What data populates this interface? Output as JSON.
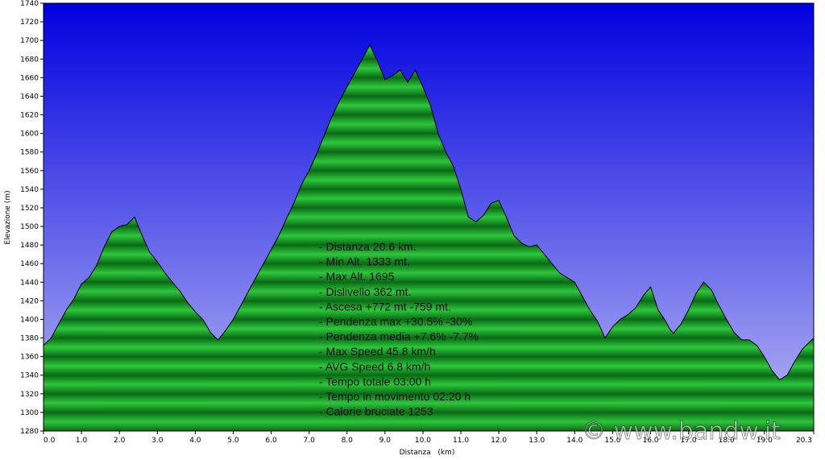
{
  "chart_data": {
    "type": "area",
    "title": "",
    "xlabel": "Distanza   (km)",
    "ylabel": "Elevazione (m)",
    "xlim": [
      0,
      20.3
    ],
    "ylim": [
      1280,
      1740
    ],
    "x_ticks": [
      "0.0",
      "1.0",
      "2.0",
      "3.0",
      "4.0",
      "5.0",
      "6.0",
      "7.0",
      "8.0",
      "9.0",
      "10.0",
      "11.0",
      "12.0",
      "13.0",
      "14.0",
      "15.0",
      "16.0",
      "17.0",
      "18.0",
      "19.0",
      "20.3"
    ],
    "y_ticks": [
      "1280",
      "1300",
      "1320",
      "1340",
      "1360",
      "1380",
      "1400",
      "1420",
      "1440",
      "1460",
      "1480",
      "1500",
      "1520",
      "1540",
      "1560",
      "1580",
      "1600",
      "1620",
      "1640",
      "1660",
      "1680",
      "1700",
      "1720",
      "1740"
    ],
    "grid": false,
    "colors": {
      "sky_top": "#0000e0",
      "sky_bottom": "#b8b8f4",
      "fill_light": "#2ec63c",
      "fill_dark": "#0a6a16",
      "outline": "#000000"
    },
    "series": [
      {
        "x": [
          0.0,
          0.2,
          0.4,
          0.6,
          0.8,
          1.0,
          1.2,
          1.4,
          1.6,
          1.8,
          2.0,
          2.2,
          2.4,
          2.6,
          2.8,
          3.0,
          3.2,
          3.4,
          3.6,
          3.8,
          4.0,
          4.2,
          4.4,
          4.6,
          4.8,
          5.0,
          5.2,
          5.4,
          5.6,
          5.8,
          6.0,
          6.2,
          6.4,
          6.6,
          6.8,
          7.0,
          7.2,
          7.4,
          7.6,
          7.8,
          8.0,
          8.2,
          8.4,
          8.6,
          8.8,
          9.0,
          9.2,
          9.4,
          9.6,
          9.8,
          10.0,
          10.2,
          10.4,
          10.6,
          10.8,
          11.0,
          11.2,
          11.4,
          11.6,
          11.8,
          12.0,
          12.2,
          12.4,
          12.6,
          12.8,
          13.0,
          13.2,
          13.4,
          13.6,
          13.8,
          14.0,
          14.2,
          14.4,
          14.6,
          14.8,
          15.0,
          15.2,
          15.4,
          15.6,
          15.8,
          16.0,
          16.2,
          16.4,
          16.5,
          16.6,
          16.8,
          17.0,
          17.2,
          17.4,
          17.6,
          17.8,
          18.0,
          18.2,
          18.4,
          18.6,
          18.8,
          19.0,
          19.2,
          19.4,
          19.6,
          19.8,
          20.0,
          20.3
        ],
        "y": [
          1372,
          1380,
          1395,
          1410,
          1422,
          1438,
          1445,
          1458,
          1478,
          1494,
          1500,
          1502,
          1510,
          1490,
          1472,
          1462,
          1450,
          1440,
          1430,
          1418,
          1408,
          1400,
          1386,
          1378,
          1388,
          1400,
          1415,
          1430,
          1445,
          1460,
          1475,
          1490,
          1508,
          1525,
          1545,
          1560,
          1578,
          1598,
          1618,
          1635,
          1650,
          1665,
          1680,
          1695,
          1678,
          1658,
          1662,
          1668,
          1655,
          1668,
          1650,
          1630,
          1600,
          1580,
          1565,
          1540,
          1510,
          1505,
          1512,
          1525,
          1528,
          1510,
          1490,
          1482,
          1478,
          1480,
          1470,
          1460,
          1450,
          1445,
          1440,
          1425,
          1410,
          1398,
          1380,
          1392,
          1400,
          1405,
          1412,
          1425,
          1435,
          1410,
          1398,
          1390,
          1385,
          1395,
          1410,
          1428,
          1440,
          1432,
          1415,
          1400,
          1386,
          1378,
          1378,
          1372,
          1360,
          1345,
          1335,
          1340,
          1355,
          1368,
          1380
        ]
      }
    ],
    "annotations": [
      "- Distanza 20.6 km.",
      "- Min Alt. 1333 mt.",
      "- Max Alt. 1695",
      "- Dislivello 362 mt.",
      "- Ascesa +772 mt -759 mt.",
      "- Pendenza max +30.5% -30%",
      "- Pendenza media +7.6% -7.7%",
      "- Max Speed 45.8 km/h",
      "- AVG Speed 6.8 km/h",
      "- Tempo totale 03:00 h",
      "- Tempo in movimento 02:20 h",
      "- Calorie bruciate 1253"
    ],
    "watermark": "© www.bandw.it"
  }
}
